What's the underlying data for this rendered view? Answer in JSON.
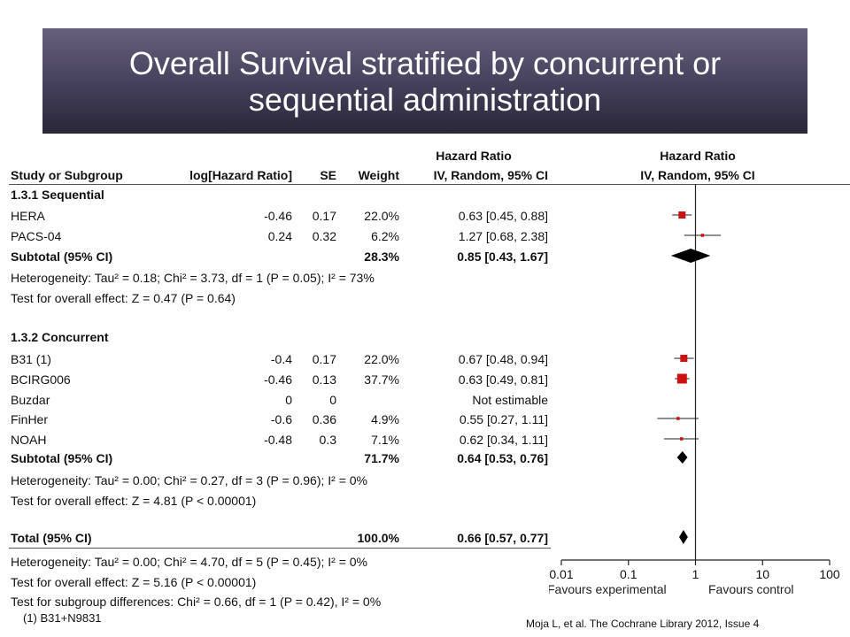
{
  "title": {
    "line1": "Overall Survival stratified by concurrent or",
    "line2": "sequential administration"
  },
  "citation": "Moja L, et al. The Cochrane Library 2012, Issue 4",
  "chart_data": {
    "type": "forest",
    "headers": {
      "study": "Study or Subgroup",
      "loghr": "log[Hazard Ratio]",
      "se": "SE",
      "weight": "Weight",
      "hr_top": "Hazard Ratio",
      "hr_sub": "IV, Random, 95% CI",
      "plot_top": "Hazard Ratio",
      "plot_sub": "IV, Random, 95% CI"
    },
    "x_axis": {
      "scale": "log",
      "ticks": [
        "0.01",
        "0.1",
        "1",
        "10",
        "100"
      ],
      "tick_values": [
        0.01,
        0.1,
        1,
        10,
        100
      ]
    },
    "favours_left": "Favours experimental",
    "favours_right": "Favours control",
    "subgroups": [
      {
        "name": "1.3.1 Sequential",
        "studies": [
          {
            "name": "HERA",
            "loghr": "-0.46",
            "se": "0.17",
            "weight": "22.0%",
            "ci_text": "0.63 [0.45, 0.88]",
            "hr": 0.63,
            "lo": 0.45,
            "hi": 0.88,
            "w": 22.0
          },
          {
            "name": "PACS-04",
            "loghr": "0.24",
            "se": "0.32",
            "weight": "6.2%",
            "ci_text": "1.27 [0.68, 2.38]",
            "hr": 1.27,
            "lo": 0.68,
            "hi": 2.38,
            "w": 6.2
          }
        ],
        "subtotal": {
          "label": "Subtotal (95% CI)",
          "weight": "28.3%",
          "ci_text": "0.85 [0.43, 1.67]",
          "hr": 0.85,
          "lo": 0.43,
          "hi": 1.67
        },
        "heterogeneity": "Heterogeneity: Tau² = 0.18; Chi² = 3.73, df = 1 (P = 0.05); I² = 73%",
        "overall_effect": "Test for overall effect: Z = 0.47 (P = 0.64)"
      },
      {
        "name": "1.3.2 Concurrent",
        "studies": [
          {
            "name": "B31 (1)",
            "loghr": "-0.4",
            "se": "0.17",
            "weight": "22.0%",
            "ci_text": "0.67 [0.48, 0.94]",
            "hr": 0.67,
            "lo": 0.48,
            "hi": 0.94,
            "w": 22.0
          },
          {
            "name": "BCIRG006",
            "loghr": "-0.46",
            "se": "0.13",
            "weight": "37.7%",
            "ci_text": "0.63 [0.49, 0.81]",
            "hr": 0.63,
            "lo": 0.49,
            "hi": 0.81,
            "w": 37.7
          },
          {
            "name": "Buzdar",
            "loghr": "0",
            "se": "0",
            "weight": "",
            "ci_text": "Not estimable",
            "hr": null,
            "lo": null,
            "hi": null,
            "w": 0
          },
          {
            "name": "FinHer",
            "loghr": "-0.6",
            "se": "0.36",
            "weight": "4.9%",
            "ci_text": "0.55 [0.27, 1.11]",
            "hr": 0.55,
            "lo": 0.27,
            "hi": 1.11,
            "w": 4.9
          },
          {
            "name": "NOAH",
            "loghr": "-0.48",
            "se": "0.3",
            "weight": "7.1%",
            "ci_text": "0.62 [0.34, 1.11]",
            "hr": 0.62,
            "lo": 0.34,
            "hi": 1.11,
            "w": 7.1
          }
        ],
        "subtotal": {
          "label": "Subtotal (95% CI)",
          "weight": "71.7%",
          "ci_text": "0.64 [0.53, 0.76]",
          "hr": 0.64,
          "lo": 0.53,
          "hi": 0.76
        },
        "heterogeneity": "Heterogeneity: Tau² = 0.00; Chi² = 0.27, df = 3 (P = 0.96); I² = 0%",
        "overall_effect": "Test for overall effect: Z = 4.81 (P < 0.00001)"
      }
    ],
    "total": {
      "label": "Total (95% CI)",
      "weight": "100.0%",
      "ci_text": "0.66 [0.57, 0.77]",
      "hr": 0.66,
      "lo": 0.57,
      "hi": 0.77,
      "heterogeneity": "Heterogeneity: Tau² = 0.00; Chi² = 4.70, df = 5 (P = 0.45); I² = 0%",
      "overall_effect": "Test for overall effect: Z = 5.16 (P < 0.00001)",
      "subgroup_diff": "Test for subgroup differences: Chi² = 0.66, df = 1 (P = 0.42), I² = 0%"
    },
    "footnote": "(1) B31+N9831",
    "colors": {
      "study_marker": "#cc1111",
      "diamond": "#000000"
    }
  }
}
